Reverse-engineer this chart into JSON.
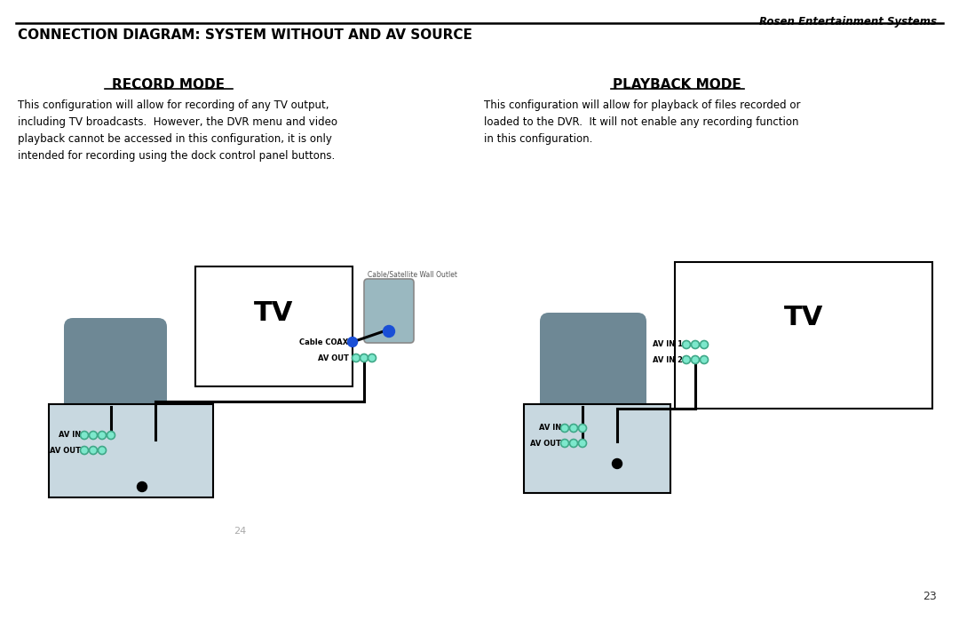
{
  "title_company": "Rosen Entertainment Systems",
  "title_main": "CONNECTION DIAGRAM: SYSTEM WITHOUT AND AV SOURCE",
  "section_left": "RECORD MODE",
  "section_right": "PLAYBACK MODE",
  "text_left": "This configuration will allow for recording of any TV output,\nincluding TV broadcasts.  However, the DVR menu and video\nplayback cannot be accessed in this configuration, it is only\nintended for recording using the dock control panel buttons.",
  "text_right": "This configuration will allow for playback of files recorded or\nloaded to the DVR.  It will not enable any recording function\nin this configuration.",
  "page_num": "23",
  "page_num2": "24",
  "bg_color": "#ffffff",
  "connector_cyan": "#7de8cc",
  "connector_cyan_edge": "#40a888",
  "connector_blue": "#1a4fd6",
  "wire_color": "#000000",
  "dvr_body_color": "#6e8895",
  "dvr_box_color": "#c8d8e0",
  "wall_outlet_color": "#9ab8c0",
  "tv_box_color": "#ffffff"
}
